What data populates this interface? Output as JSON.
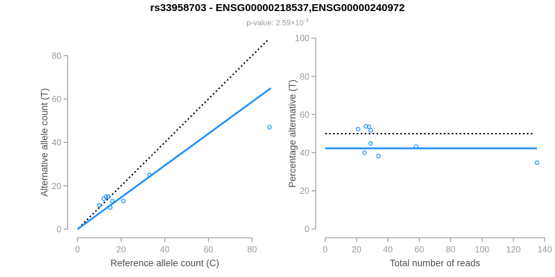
{
  "header": {
    "title": "rs33958703 - ENSG00000218537,ENSG00000240972",
    "subtitle_prefix": "p-value: 2.59×10",
    "subtitle_exponent": "-3"
  },
  "colors": {
    "point_blue": "#1E90FF",
    "fit_line_blue": "#1E90FF",
    "identity_black": "#000000",
    "axis_line_gray": "#979797",
    "tick_label_gray": "#9a9a9a",
    "axis_label_gray": "#4d4d4d",
    "title_black": "#000000",
    "subtitle_gray": "#9a9a9a"
  },
  "chart_data": [
    {
      "type": "scatter",
      "name": "allele-counts",
      "xlabel": "Reference allele count (C)",
      "ylabel": "Alternative allele count (T)",
      "xticks": [
        0,
        20,
        40,
        60,
        80
      ],
      "yticks": [
        0,
        20,
        40,
        60,
        80
      ],
      "xlim": [
        0,
        89
      ],
      "ylim": [
        0,
        88
      ],
      "points": [
        [
          10,
          11
        ],
        [
          12,
          14
        ],
        [
          13,
          15
        ],
        [
          14,
          15
        ],
        [
          15,
          10
        ],
        [
          16,
          13
        ],
        [
          21,
          13
        ],
        [
          33,
          25
        ],
        [
          88,
          47
        ]
      ],
      "lines": [
        {
          "name": "identity-line",
          "style": "dotted",
          "color": "#000000",
          "x1": 0.5,
          "y1": 0.5,
          "x2": 87.5,
          "y2": 87.5
        },
        {
          "name": "fit-line",
          "style": "solid",
          "color": "#1E90FF",
          "x1": 0,
          "y1": 0,
          "x2": 88.6,
          "y2": 65.0
        }
      ]
    },
    {
      "type": "scatter",
      "name": "percentage-vs-reads",
      "xlabel": "Total number of reads",
      "ylabel": "Percentage alternative (T)",
      "xticks": [
        0,
        20,
        40,
        60,
        80,
        100,
        120,
        140
      ],
      "yticks": [
        0,
        20,
        40,
        60,
        80,
        100
      ],
      "xlim": [
        0,
        140
      ],
      "ylim": [
        0,
        100
      ],
      "points": [
        [
          21,
          52.4
        ],
        [
          26,
          53.8
        ],
        [
          28,
          53.6
        ],
        [
          29,
          51.7
        ],
        [
          25,
          40.0
        ],
        [
          29,
          44.8
        ],
        [
          34,
          38.2
        ],
        [
          58,
          43.1
        ],
        [
          135,
          34.8
        ]
      ],
      "lines": [
        {
          "name": "expected-50pct-line",
          "style": "dotted",
          "color": "#000000",
          "x1": 0,
          "y1": 50,
          "x2": 133,
          "y2": 50
        },
        {
          "name": "observed-mean-line",
          "style": "solid",
          "color": "#1E90FF",
          "x1": 0,
          "y1": 42.3,
          "x2": 135,
          "y2": 42.3
        }
      ]
    }
  ]
}
